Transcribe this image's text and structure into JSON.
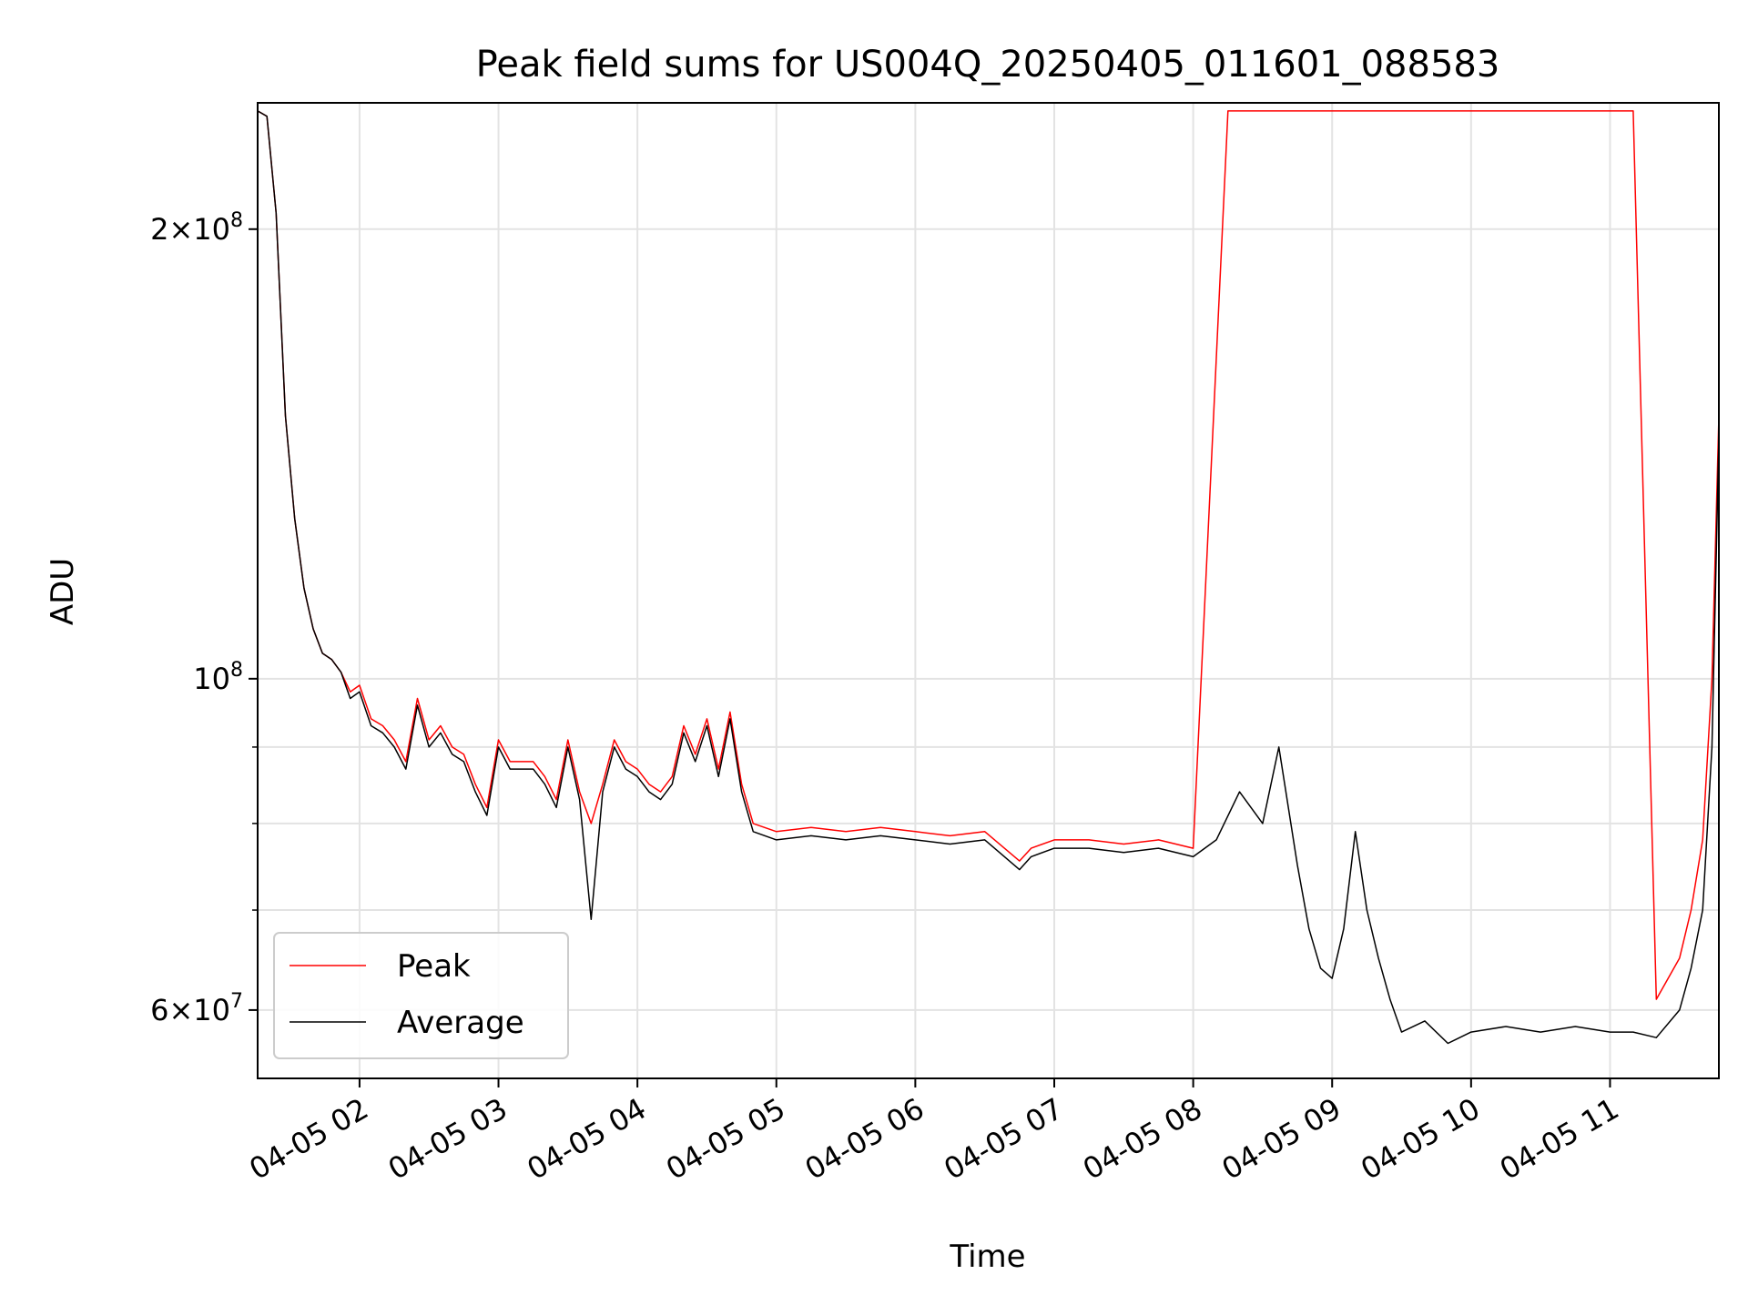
{
  "chart_data": {
    "type": "line",
    "title": "Peak field sums for US004Q_20250405_011601_088583",
    "xlabel": "Time",
    "ylabel": "ADU",
    "y_scale": "log",
    "ylim": [
      54000000,
      243000000
    ],
    "xlim": [
      "04-05 01:16",
      "04-05 11:47"
    ],
    "grid": true,
    "legend_position": "lower-left",
    "x_ticks": [
      {
        "label": "04-05 02",
        "value": "04-05 02:00"
      },
      {
        "label": "04-05 03",
        "value": "04-05 03:00"
      },
      {
        "label": "04-05 04",
        "value": "04-05 04:00"
      },
      {
        "label": "04-05 05",
        "value": "04-05 05:00"
      },
      {
        "label": "04-05 06",
        "value": "04-05 06:00"
      },
      {
        "label": "04-05 07",
        "value": "04-05 07:00"
      },
      {
        "label": "04-05 08",
        "value": "04-05 08:00"
      },
      {
        "label": "04-05 09",
        "value": "04-05 09:00"
      },
      {
        "label": "04-05 10",
        "value": "04-05 10:00"
      },
      {
        "label": "04-05 11",
        "value": "04-05 11:00"
      }
    ],
    "y_ticks": [
      {
        "value": 60000000,
        "base": "6×10",
        "exp": "7"
      },
      {
        "value": 100000000,
        "base": "10",
        "exp": "8"
      },
      {
        "value": 200000000,
        "base": "2×10",
        "exp": "8"
      }
    ],
    "y_minor_ticks": [
      70000000,
      80000000,
      90000000
    ],
    "series": [
      {
        "name": "Peak",
        "color": "#ff0000",
        "x": [
          "04-05 01:16",
          "04-05 01:20",
          "04-05 01:24",
          "04-05 01:28",
          "04-05 01:32",
          "04-05 01:36",
          "04-05 01:40",
          "04-05 01:44",
          "04-05 01:48",
          "04-05 01:52",
          "04-05 01:56",
          "04-05 02:00",
          "04-05 02:05",
          "04-05 02:10",
          "04-05 02:15",
          "04-05 02:20",
          "04-05 02:25",
          "04-05 02:30",
          "04-05 02:35",
          "04-05 02:40",
          "04-05 02:45",
          "04-05 02:50",
          "04-05 02:55",
          "04-05 03:00",
          "04-05 03:05",
          "04-05 03:10",
          "04-05 03:15",
          "04-05 03:20",
          "04-05 03:25",
          "04-05 03:30",
          "04-05 03:35",
          "04-05 03:40",
          "04-05 03:45",
          "04-05 03:50",
          "04-05 03:55",
          "04-05 04:00",
          "04-05 04:05",
          "04-05 04:10",
          "04-05 04:15",
          "04-05 04:20",
          "04-05 04:25",
          "04-05 04:30",
          "04-05 04:35",
          "04-05 04:40",
          "04-05 04:45",
          "04-05 04:50",
          "04-05 05:00",
          "04-05 05:15",
          "04-05 05:30",
          "04-05 05:45",
          "04-05 06:00",
          "04-05 06:15",
          "04-05 06:30",
          "04-05 06:45",
          "04-05 06:50",
          "04-05 07:00",
          "04-05 07:15",
          "04-05 07:30",
          "04-05 07:45",
          "04-05 08:00",
          "04-05 08:15",
          "04-05 08:30",
          "04-05 08:45",
          "04-05 09:00",
          "04-05 09:15",
          "04-05 09:30",
          "04-05 09:45",
          "04-05 10:00",
          "04-05 10:15",
          "04-05 10:30",
          "04-05 10:45",
          "04-05 11:00",
          "04-05 11:10",
          "04-05 11:20",
          "04-05 11:30",
          "04-05 11:35",
          "04-05 11:40",
          "04-05 11:44",
          "04-05 11:47"
        ],
        "values": [
          240000000,
          238000000,
          205000000,
          150000000,
          128000000,
          115000000,
          108000000,
          104000000,
          103000000,
          101000000,
          98000000,
          99000000,
          94000000,
          93000000,
          91000000,
          88000000,
          97000000,
          91000000,
          93000000,
          90000000,
          89000000,
          85000000,
          82000000,
          91000000,
          88000000,
          88000000,
          88000000,
          86000000,
          83000000,
          91000000,
          84000000,
          80000000,
          85000000,
          91000000,
          88000000,
          87000000,
          85000000,
          84000000,
          86000000,
          93000000,
          89000000,
          94000000,
          87000000,
          95000000,
          85000000,
          80000000,
          79000000,
          79500000,
          79000000,
          79500000,
          79000000,
          78500000,
          79000000,
          75500000,
          77000000,
          78000000,
          78000000,
          77500000,
          78000000,
          77000000,
          240000000,
          240000000,
          240000000,
          240000000,
          240000000,
          240000000,
          240000000,
          240000000,
          240000000,
          240000000,
          240000000,
          240000000,
          240000000,
          61000000,
          65000000,
          70000000,
          78000000,
          100000000,
          150000000
        ]
      },
      {
        "name": "Average",
        "color": "#000000",
        "x": [
          "04-05 01:16",
          "04-05 01:20",
          "04-05 01:24",
          "04-05 01:28",
          "04-05 01:32",
          "04-05 01:36",
          "04-05 01:40",
          "04-05 01:44",
          "04-05 01:48",
          "04-05 01:52",
          "04-05 01:56",
          "04-05 02:00",
          "04-05 02:05",
          "04-05 02:10",
          "04-05 02:15",
          "04-05 02:20",
          "04-05 02:25",
          "04-05 02:30",
          "04-05 02:35",
          "04-05 02:40",
          "04-05 02:45",
          "04-05 02:50",
          "04-05 02:55",
          "04-05 03:00",
          "04-05 03:05",
          "04-05 03:10",
          "04-05 03:15",
          "04-05 03:20",
          "04-05 03:25",
          "04-05 03:30",
          "04-05 03:35",
          "04-05 03:40",
          "04-05 03:45",
          "04-05 03:50",
          "04-05 03:55",
          "04-05 04:00",
          "04-05 04:05",
          "04-05 04:10",
          "04-05 04:15",
          "04-05 04:20",
          "04-05 04:25",
          "04-05 04:30",
          "04-05 04:35",
          "04-05 04:40",
          "04-05 04:45",
          "04-05 04:50",
          "04-05 05:00",
          "04-05 05:15",
          "04-05 05:30",
          "04-05 05:45",
          "04-05 06:00",
          "04-05 06:15",
          "04-05 06:30",
          "04-05 06:45",
          "04-05 06:50",
          "04-05 07:00",
          "04-05 07:15",
          "04-05 07:30",
          "04-05 07:45",
          "04-05 08:00",
          "04-05 08:10",
          "04-05 08:20",
          "04-05 08:30",
          "04-05 08:37",
          "04-05 08:45",
          "04-05 08:50",
          "04-05 08:55",
          "04-05 09:00",
          "04-05 09:05",
          "04-05 09:10",
          "04-05 09:15",
          "04-05 09:20",
          "04-05 09:25",
          "04-05 09:30",
          "04-05 09:40",
          "04-05 09:50",
          "04-05 10:00",
          "04-05 10:15",
          "04-05 10:30",
          "04-05 10:45",
          "04-05 11:00",
          "04-05 11:10",
          "04-05 11:20",
          "04-05 11:30",
          "04-05 11:35",
          "04-05 11:40",
          "04-05 11:44",
          "04-05 11:47"
        ],
        "values": [
          240000000,
          238000000,
          205000000,
          150000000,
          128000000,
          115000000,
          108000000,
          104000000,
          103000000,
          101000000,
          97000000,
          98000000,
          93000000,
          92000000,
          90000000,
          87000000,
          96000000,
          90000000,
          92000000,
          89000000,
          88000000,
          84000000,
          81000000,
          90000000,
          87000000,
          87000000,
          87000000,
          85000000,
          82000000,
          90000000,
          83000000,
          69000000,
          84000000,
          90000000,
          87000000,
          86000000,
          84000000,
          83000000,
          85000000,
          92000000,
          88000000,
          93000000,
          86000000,
          94000000,
          84000000,
          79000000,
          78000000,
          78500000,
          78000000,
          78500000,
          78000000,
          77500000,
          78000000,
          74500000,
          76000000,
          77000000,
          77000000,
          76500000,
          77000000,
          76000000,
          78000000,
          84000000,
          80000000,
          90000000,
          75000000,
          68000000,
          64000000,
          63000000,
          68000000,
          79000000,
          70000000,
          65000000,
          61000000,
          58000000,
          59000000,
          57000000,
          58000000,
          58500000,
          58000000,
          58500000,
          58000000,
          58000000,
          57500000,
          60000000,
          64000000,
          70000000,
          90000000,
          145000000
        ]
      }
    ]
  }
}
